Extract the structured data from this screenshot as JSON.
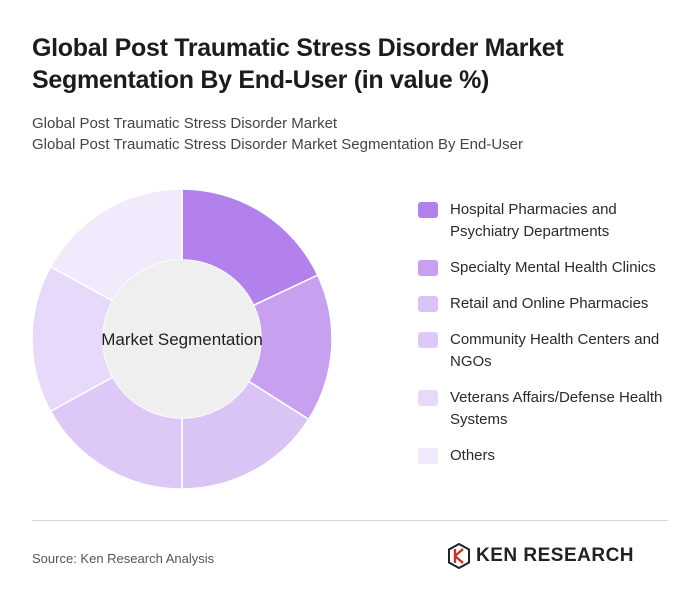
{
  "title": "Global Post Traumatic Stress Disorder Market Segmentation By End-User (in value %)",
  "subtitle_lines": [
    "Global Post Traumatic Stress Disorder Market",
    "Global Post Traumatic Stress Disorder Market Segmentation By End-User"
  ],
  "center_label": "Market Segmentation",
  "source": "Source: Ken Research Analysis",
  "brand": {
    "name": "KEN RESEARCH",
    "logo_icon": "ken-logo-icon"
  },
  "chart_data": {
    "type": "pie",
    "subtype": "donut",
    "title": "Global Post Traumatic Stress Disorder Market Segmentation By End-User (in value %)",
    "center_label": "Market Segmentation",
    "legend_position": "right",
    "categories": [
      "Hospital Pharmacies and Psychiatry Departments",
      "Specialty Mental Health Clinics",
      "Retail and Online Pharmacies",
      "Community Health Centers and NGOs",
      "Veterans Affairs/Defense Health Systems",
      "Others"
    ],
    "values": [
      18,
      16,
      16,
      17,
      16,
      17
    ],
    "colors": [
      "#b381ec",
      "#c7a0f0",
      "#dac4f6",
      "#ddc8f7",
      "#e7d9f9",
      "#f1e9fc"
    ]
  }
}
